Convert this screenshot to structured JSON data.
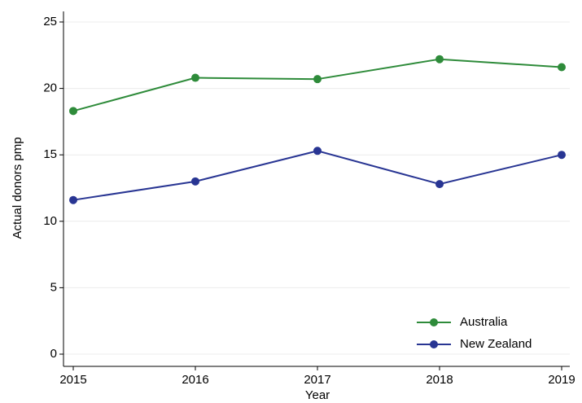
{
  "chart_data": {
    "type": "line",
    "x": [
      2015,
      2016,
      2017,
      2018,
      2019
    ],
    "series": [
      {
        "name": "Australia",
        "color": "#2e8b3a",
        "values": [
          18.3,
          20.8,
          20.7,
          22.2,
          21.6
        ]
      },
      {
        "name": "New Zealand",
        "color": "#283593",
        "values": [
          11.6,
          13.0,
          15.3,
          12.8,
          15.0
        ]
      }
    ],
    "xlabel": "Year",
    "ylabel": "Actual donors pmp",
    "xlim": [
      2015,
      2019
    ],
    "xticks": [
      2015,
      2016,
      2017,
      2018,
      2019
    ],
    "ylim": [
      0,
      25
    ],
    "yticks": [
      0,
      5,
      10,
      15,
      20,
      25
    ],
    "grid": true,
    "legend": "lower right"
  }
}
